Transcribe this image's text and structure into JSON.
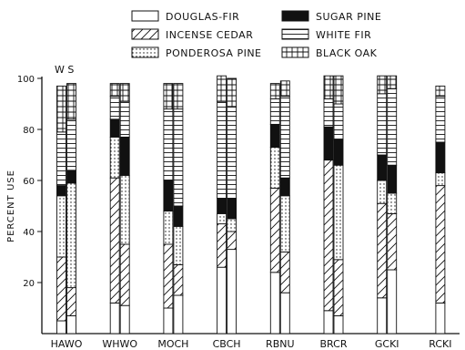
{
  "chart_data": {
    "type": "bar",
    "subtype": "stacked, paired bars per group",
    "ylabel": "PERCENT USE",
    "ylim": [
      0,
      100
    ],
    "yticks": [
      20,
      40,
      60,
      80,
      100
    ],
    "annotation": "W S",
    "categories": [
      "HAWO",
      "WHWO",
      "MOCH",
      "CBCH",
      "RBNU",
      "BRCR",
      "GCKI",
      "RCKI"
    ],
    "legend": [
      {
        "name": "DOUGLAS-FIR",
        "pattern": "blank"
      },
      {
        "name": "INCENSE CEDAR",
        "pattern": "diagonal"
      },
      {
        "name": "PONDEROSA PINE",
        "pattern": "dotted"
      },
      {
        "name": "SUGAR PINE",
        "pattern": "solid"
      },
      {
        "name": "WHITE FIR",
        "pattern": "horizontal"
      },
      {
        "name": "BLACK OAK",
        "pattern": "grid"
      }
    ],
    "bars": [
      {
        "category": "HAWO",
        "bar": "W",
        "segments": {
          "DOUGLAS-FIR": 5,
          "INCENSE CEDAR": 25,
          "PONDEROSA PINE": 24,
          "SUGAR PINE": 4,
          "WHITE FIR": 21,
          "BLACK OAK": 18
        }
      },
      {
        "category": "HAWO",
        "bar": "S",
        "segments": {
          "DOUGLAS-FIR": 7,
          "INCENSE CEDAR": 11,
          "PONDEROSA PINE": 41,
          "SUGAR PINE": 5,
          "WHITE FIR": 20,
          "BLACK OAK": 14
        }
      },
      {
        "category": "WHWO",
        "bar": "W",
        "segments": {
          "DOUGLAS-FIR": 12,
          "INCENSE CEDAR": 49,
          "PONDEROSA PINE": 16,
          "SUGAR PINE": 7,
          "WHITE FIR": 9,
          "BLACK OAK": 5
        }
      },
      {
        "category": "WHWO",
        "bar": "S",
        "segments": {
          "DOUGLAS-FIR": 11,
          "INCENSE CEDAR": 24,
          "PONDEROSA PINE": 27,
          "SUGAR PINE": 15,
          "WHITE FIR": 14,
          "BLACK OAK": 7
        }
      },
      {
        "category": "MOCH",
        "bar": "W",
        "segments": {
          "DOUGLAS-FIR": 10,
          "INCENSE CEDAR": 25,
          "PONDEROSA PINE": 13,
          "SUGAR PINE": 12,
          "WHITE FIR": 28,
          "BLACK OAK": 10
        }
      },
      {
        "category": "MOCH",
        "bar": "S",
        "segments": {
          "DOUGLAS-FIR": 15,
          "INCENSE CEDAR": 12,
          "PONDEROSA PINE": 15,
          "SUGAR PINE": 8,
          "WHITE FIR": 38,
          "BLACK OAK": 10
        }
      },
      {
        "category": "CBCH",
        "bar": "W",
        "segments": {
          "DOUGLAS-FIR": 26,
          "INCENSE CEDAR": 17,
          "PONDEROSA PINE": 4,
          "SUGAR PINE": 6,
          "WHITE FIR": 38,
          "BLACK OAK": 10
        }
      },
      {
        "category": "CBCH",
        "bar": "S",
        "segments": {
          "DOUGLAS-FIR": 33,
          "INCENSE CEDAR": 7,
          "PONDEROSA PINE": 5,
          "SUGAR PINE": 8,
          "WHITE FIR": 36,
          "BLACK OAK": 11
        }
      },
      {
        "category": "RBNU",
        "bar": "W",
        "segments": {
          "DOUGLAS-FIR": 24,
          "INCENSE CEDAR": 33,
          "PONDEROSA PINE": 16,
          "SUGAR PINE": 9,
          "WHITE FIR": 10,
          "BLACK OAK": 6
        }
      },
      {
        "category": "RBNU",
        "bar": "S",
        "segments": {
          "DOUGLAS-FIR": 16,
          "INCENSE CEDAR": 16,
          "PONDEROSA PINE": 22,
          "SUGAR PINE": 7,
          "WHITE FIR": 32,
          "BLACK OAK": 6
        }
      },
      {
        "category": "BRCR",
        "bar": "W",
        "segments": {
          "DOUGLAS-FIR": 9,
          "INCENSE CEDAR": 59,
          "PONDEROSA PINE": 0,
          "SUGAR PINE": 13,
          "WHITE FIR": 11,
          "BLACK OAK": 9
        }
      },
      {
        "category": "BRCR",
        "bar": "S",
        "segments": {
          "DOUGLAS-FIR": 7,
          "INCENSE CEDAR": 22,
          "PONDEROSA PINE": 37,
          "SUGAR PINE": 10,
          "WHITE FIR": 14,
          "BLACK OAK": 11
        }
      },
      {
        "category": "GCKI",
        "bar": "W",
        "segments": {
          "DOUGLAS-FIR": 14,
          "INCENSE CEDAR": 37,
          "PONDEROSA PINE": 9,
          "SUGAR PINE": 10,
          "WHITE FIR": 24,
          "BLACK OAK": 7
        }
      },
      {
        "category": "GCKI",
        "bar": "S",
        "segments": {
          "DOUGLAS-FIR": 25,
          "INCENSE CEDAR": 22,
          "PONDEROSA PINE": 8,
          "SUGAR PINE": 11,
          "WHITE FIR": 30,
          "BLACK OAK": 5
        }
      },
      {
        "category": "RCKI",
        "bar": "single",
        "segments": {
          "DOUGLAS-FIR": 12,
          "INCENSE CEDAR": 46,
          "PONDEROSA PINE": 5,
          "SUGAR PINE": 12,
          "WHITE FIR": 18,
          "BLACK OAK": 4
        }
      }
    ]
  }
}
